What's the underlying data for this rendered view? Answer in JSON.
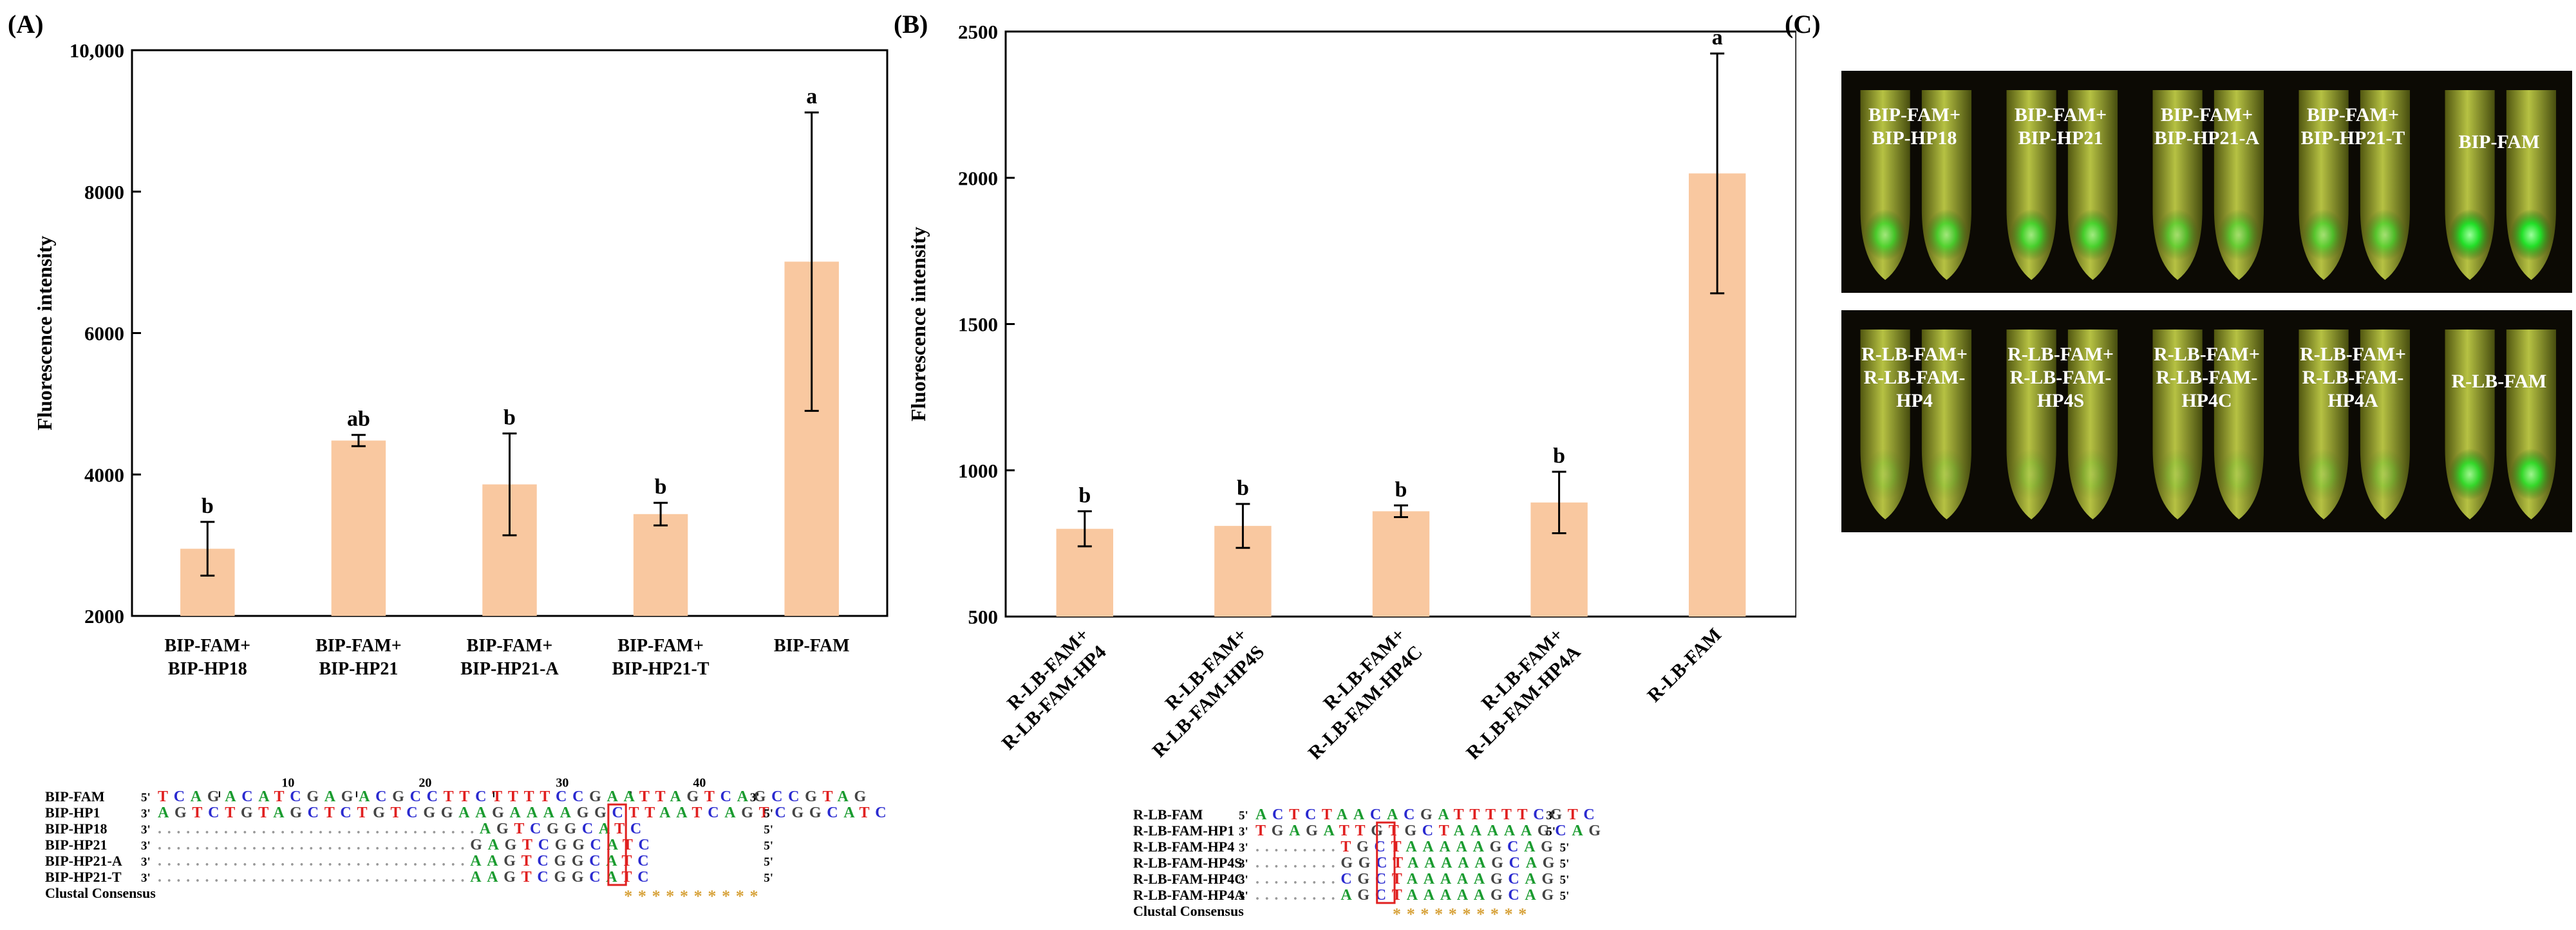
{
  "panels": {
    "a": "(A)",
    "b": "(B)",
    "c": "(C)"
  },
  "chart_data": [
    {
      "type": "bar",
      "title": "",
      "xlabel": "",
      "ylabel": "Fluorescence intensity",
      "ylim": [
        2000,
        10000
      ],
      "yticks": [
        "2000",
        "4000",
        "6000",
        "8000",
        "10,000"
      ],
      "categories": [
        [
          "BIP-FAM+",
          "BIP-HP18"
        ],
        [
          "BIP-FAM+",
          "BIP-HP21"
        ],
        [
          "BIP-FAM+",
          "BIP-HP21-A"
        ],
        [
          "BIP-FAM+",
          "BIP-HP21-T"
        ],
        [
          "BIP-FAM"
        ]
      ],
      "values": [
        2950,
        4480,
        3860,
        3440,
        7010
      ],
      "errors": [
        380,
        80,
        720,
        160,
        2110
      ],
      "letters": [
        "b",
        "ab",
        "b",
        "b",
        "a"
      ],
      "bar_color": "#f9c8a0"
    },
    {
      "type": "bar",
      "title": "",
      "xlabel": "",
      "ylabel": "Fluorescence intensity",
      "ylim": [
        500,
        2500
      ],
      "yticks": [
        "500",
        "1000",
        "1500",
        "2000",
        "2500"
      ],
      "categories": [
        [
          "R-LB-FAM+",
          "R-LB-FAM-HP4"
        ],
        [
          "R-LB-FAM+",
          "R-LB-FAM-HP4S"
        ],
        [
          "R-LB-FAM+",
          "R-LB-FAM-HP4C"
        ],
        [
          "R-LB-FAM+",
          "R-LB-FAM-HP4A"
        ],
        [
          "R-LB-FAM"
        ]
      ],
      "values": [
        800,
        810,
        860,
        890,
        2015
      ],
      "errors": [
        60,
        75,
        20,
        105,
        410
      ],
      "letters": [
        "b",
        "b",
        "b",
        "b",
        "a"
      ],
      "bar_color": "#f9c8a0"
    }
  ],
  "alignment_a": {
    "ruler_numbers": [
      "10",
      "20",
      "30",
      "40"
    ],
    "consensus_label": "Clustal Consensus",
    "consensus_marks": "**********",
    "rows": [
      {
        "name": "BIP-FAM",
        "p5": "5'",
        "seq": "TCAGACATCGAGACGCCTTCTTTTCCGAATTAGTCAGCCGTAG",
        "p3": "3'"
      },
      {
        "name": "BIP-HP1",
        "p5": "3'",
        "seq": "AGTCTGTAGCTCTGTCGGAAGAAAAGGCTTAATCAGTCGGCATC",
        "p3": "5'"
      },
      {
        "name": "BIP-HP18",
        "p5": "3'",
        "seq": "..................................AGTCGGCATC",
        "p3": "5'"
      },
      {
        "name": "BIP-HP21",
        "p5": "3'",
        "seq": ".................................GAGTCGGCATC",
        "p3": "5'"
      },
      {
        "name": "BIP-HP21-A",
        "p5": "3'",
        "seq": ".................................AAGTCGGCATC",
        "p3": "5'"
      },
      {
        "name": "BIP-HP21-T",
        "p5": "3'",
        "seq": ".................................AAGTCGGCATC",
        "p3": "5'"
      }
    ]
  },
  "alignment_b": {
    "consensus_label": "Clustal Consensus",
    "consensus_marks": "**********",
    "rows": [
      {
        "name": "R-LB-FAM",
        "p5": "5'",
        "seq": "ACTCTAACACGATTTTTCGTC",
        "p3": "3'"
      },
      {
        "name": "R-LB-FAM-HP1",
        "p5": "3'",
        "seq": "TGAGATTGTGCTAAAAAGCAG",
        "p3": "5'"
      },
      {
        "name": "R-LB-FAM-HP4",
        "p5": "3'",
        "seq": ".........TGCTAAAAAGCAG",
        "p3": "5'"
      },
      {
        "name": "R-LB-FAM-HP4S",
        "p5": "3'",
        "seq": ".........GGCTAAAAAGCAG",
        "p3": "5'"
      },
      {
        "name": "R-LB-FAM-HP4C",
        "p5": "3'",
        "seq": ".........CGCTAAAAAGCAG",
        "p3": "5'"
      },
      {
        "name": "R-LB-FAM-HP4A",
        "p5": "3'",
        "seq": ".........AGCTAAAAAGCAG",
        "p3": "5'"
      }
    ]
  },
  "photo_top": {
    "labels": [
      [
        "BIP-FAM+",
        "BIP-HP18"
      ],
      [
        "BIP-FAM+",
        "BIP-HP21"
      ],
      [
        "BIP-FAM+",
        "BIP-HP21-A"
      ],
      [
        "BIP-FAM+",
        "BIP-HP21-T"
      ],
      [
        "BIP-FAM"
      ]
    ],
    "glow": [
      0.65,
      0.7,
      0.5,
      0.55,
      1.0
    ]
  },
  "photo_bottom": {
    "labels": [
      [
        "R-LB-FAM+",
        "R-LB-FAM-",
        "HP4"
      ],
      [
        "R-LB-FAM+",
        "R-LB-FAM-",
        "HP4S"
      ],
      [
        "R-LB-FAM+",
        "R-LB-FAM-",
        "HP4C"
      ],
      [
        "R-LB-FAM+",
        "R-LB-FAM-",
        "HP4A"
      ],
      [
        "R-LB-FAM"
      ]
    ],
    "glow": [
      0.15,
      0.15,
      0.15,
      0.2,
      0.85
    ]
  }
}
